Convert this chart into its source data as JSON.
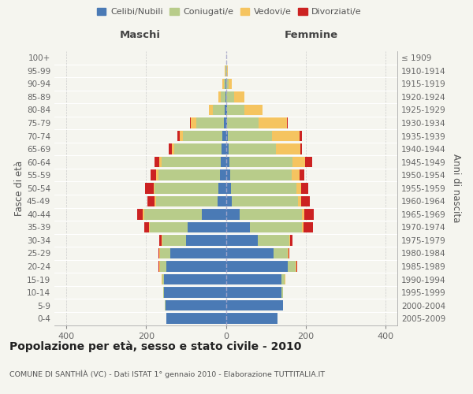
{
  "age_groups": [
    "0-4",
    "5-9",
    "10-14",
    "15-19",
    "20-24",
    "25-29",
    "30-34",
    "35-39",
    "40-44",
    "45-49",
    "50-54",
    "55-59",
    "60-64",
    "65-69",
    "70-74",
    "75-79",
    "80-84",
    "85-89",
    "90-94",
    "95-99",
    "100+"
  ],
  "birth_years": [
    "2005-2009",
    "2000-2004",
    "1995-1999",
    "1990-1994",
    "1985-1989",
    "1980-1984",
    "1975-1979",
    "1970-1974",
    "1965-1969",
    "1960-1964",
    "1955-1959",
    "1950-1954",
    "1945-1949",
    "1940-1944",
    "1935-1939",
    "1930-1934",
    "1925-1929",
    "1920-1924",
    "1915-1919",
    "1910-1914",
    "≤ 1909"
  ],
  "colors": {
    "celibe": "#4a7ab5",
    "coniugato": "#b8cc8a",
    "vedovo": "#f5c460",
    "divorziato": "#cc2222"
  },
  "maschi": {
    "celibe": [
      150,
      152,
      155,
      155,
      150,
      140,
      100,
      95,
      60,
      20,
      18,
      14,
      12,
      10,
      8,
      5,
      3,
      1,
      1,
      0,
      0
    ],
    "coniugato": [
      0,
      1,
      2,
      5,
      15,
      25,
      60,
      95,
      145,
      155,
      160,
      155,
      150,
      120,
      100,
      70,
      30,
      12,
      4,
      1,
      0
    ],
    "vedovo": [
      0,
      0,
      0,
      1,
      2,
      2,
      2,
      2,
      3,
      3,
      3,
      5,
      5,
      5,
      8,
      12,
      10,
      5,
      3,
      1,
      0
    ],
    "divorziato": [
      0,
      0,
      0,
      1,
      2,
      3,
      5,
      12,
      15,
      18,
      22,
      15,
      12,
      8,
      5,
      2,
      0,
      0,
      0,
      0,
      0
    ]
  },
  "femmine": {
    "nubile": [
      130,
      143,
      140,
      140,
      155,
      120,
      80,
      60,
      35,
      15,
      12,
      10,
      8,
      6,
      5,
      3,
      2,
      1,
      1,
      0,
      0
    ],
    "coniugata": [
      0,
      1,
      3,
      8,
      20,
      35,
      80,
      130,
      155,
      165,
      165,
      155,
      160,
      120,
      110,
      80,
      45,
      20,
      5,
      2,
      0
    ],
    "vedova": [
      0,
      0,
      0,
      1,
      1,
      2,
      2,
      4,
      6,
      8,
      12,
      20,
      30,
      60,
      70,
      70,
      45,
      25,
      8,
      2,
      0
    ],
    "divorziata": [
      0,
      0,
      0,
      1,
      2,
      3,
      5,
      25,
      25,
      22,
      18,
      12,
      18,
      5,
      5,
      2,
      0,
      0,
      0,
      0,
      0
    ]
  },
  "xlim": 430,
  "title": "Popolazione per età, sesso e stato civile - 2010",
  "subtitle": "COMUNE DI SANTHÌÀ (VC) - Dati ISTAT 1° gennaio 2010 - Elaborazione TUTTITALIA.IT",
  "ylabel_left": "Fasce di età",
  "ylabel_right": "Anni di nascita",
  "xlabel_left": "Maschi",
  "xlabel_right": "Femmine",
  "bg_color": "#f5f5ef",
  "bar_height": 0.82
}
